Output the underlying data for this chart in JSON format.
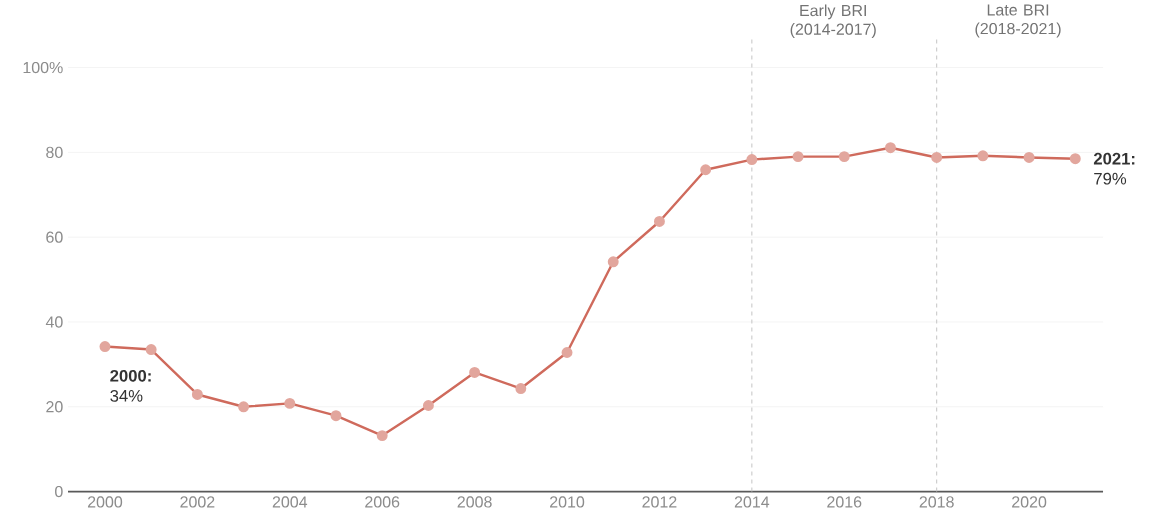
{
  "chart_data": {
    "type": "line",
    "x": [
      2000,
      2001,
      2002,
      2003,
      2004,
      2005,
      2006,
      2007,
      2008,
      2009,
      2010,
      2011,
      2012,
      2013,
      2014,
      2015,
      2016,
      2017,
      2018,
      2019,
      2020,
      2021
    ],
    "series": [
      {
        "color": "#cf6a5c",
        "values": [
          34.2,
          33.5,
          22.9,
          20,
          20.8,
          17.9,
          13.2,
          20.3,
          28.1,
          24.3,
          32.8,
          54.2,
          63.7,
          75.9,
          78.3,
          79,
          79,
          81.1,
          78.8,
          79.2,
          78.8,
          78.5
        ]
      }
    ],
    "xlim": [
      1999.2,
      2021.6
    ],
    "xticks": [
      2000,
      2002,
      2004,
      2006,
      2008,
      2010,
      2012,
      2014,
      2016,
      2018,
      2020
    ],
    "ylim": [
      0,
      100
    ],
    "yticks": [
      0,
      20,
      40,
      60,
      80,
      {
        "value": 100,
        "label": "100%"
      }
    ],
    "grid": "y",
    "marker": "circle",
    "line_style": "solid",
    "ref_lines": [
      {
        "axis": "x",
        "value": 2014,
        "label": "Early BRI (2014-2017)",
        "color": "#c8c8c8",
        "line_style": "dashed"
      },
      {
        "axis": "x",
        "value": 2018,
        "label": "Late BRI (2018-2021)",
        "color": "#c8c8c8",
        "line_style": "dashed"
      }
    ],
    "annotations": [
      {
        "text": "**2000:** 34%",
        "x": 2000,
        "y": 34.2
      },
      {
        "text": "**2021:** 79%",
        "x": 2021,
        "y": 78.5
      }
    ]
  }
}
